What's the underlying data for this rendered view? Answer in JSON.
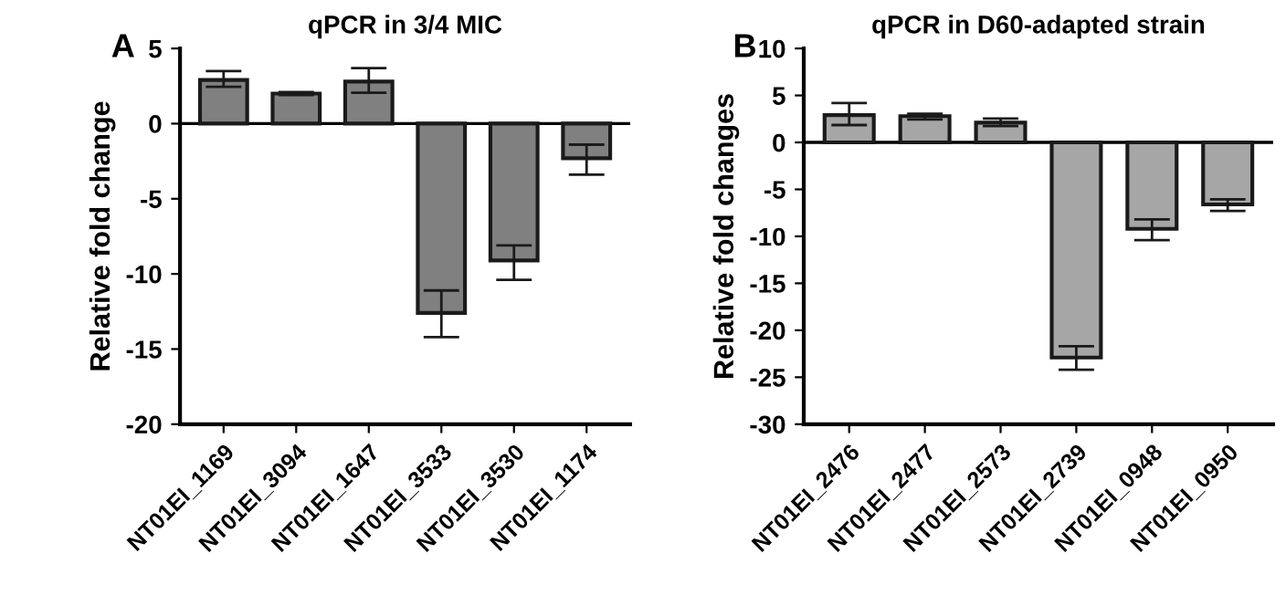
{
  "chart_data": [
    {
      "type": "bar",
      "title": "qPCR in 3/4 MIC",
      "ylabel": "Relative fold change",
      "annotations": [
        "A"
      ],
      "categories": [
        "NT01EI_1169",
        "NT01EI_3094",
        "NT01EI_1647",
        "NT01EI_3533",
        "NT01EI_3530",
        "NT01EI_1174"
      ],
      "values": [
        2.9,
        2.0,
        2.8,
        -12.6,
        -9.1,
        -2.3
      ],
      "errors": [
        [
          2.45,
          3.5
        ],
        [
          1.9,
          2.1
        ],
        [
          2.05,
          3.7
        ],
        [
          -14.2,
          -11.1
        ],
        [
          -10.4,
          -8.1
        ],
        [
          -3.4,
          -1.4
        ]
      ],
      "color": "#808080",
      "ylim": [
        -20,
        5
      ],
      "yticks": [
        -20,
        -15,
        -10,
        -5,
        0,
        5
      ],
      "ref_lines": [
        {
          "axis": "y",
          "value": 0,
          "label": null
        }
      ],
      "grid": false
    },
    {
      "type": "bar",
      "title": "qPCR in D60-adapted strain",
      "ylabel": "Relative fold changes",
      "annotations": [
        "B"
      ],
      "categories": [
        "NT01EI_2476",
        "NT01EI_2477",
        "NT01EI_2573",
        "NT01EI_2739",
        "NT01EI_0948",
        "NT01EI_0950"
      ],
      "values": [
        2.9,
        2.8,
        2.1,
        -22.9,
        -9.2,
        -6.6
      ],
      "errors": [
        [
          1.85,
          4.2
        ],
        [
          2.45,
          3.05
        ],
        [
          1.75,
          2.55
        ],
        [
          -24.2,
          -21.7
        ],
        [
          -10.4,
          -8.2
        ],
        [
          -7.3,
          -6.05
        ]
      ],
      "color": "#a6a6a6",
      "ylim": [
        -30,
        10
      ],
      "yticks": [
        -30,
        -25,
        -20,
        -15,
        -10,
        -5,
        0,
        5,
        10
      ],
      "ref_lines": [
        {
          "axis": "y",
          "value": 0,
          "label": null
        }
      ],
      "grid": false
    }
  ]
}
